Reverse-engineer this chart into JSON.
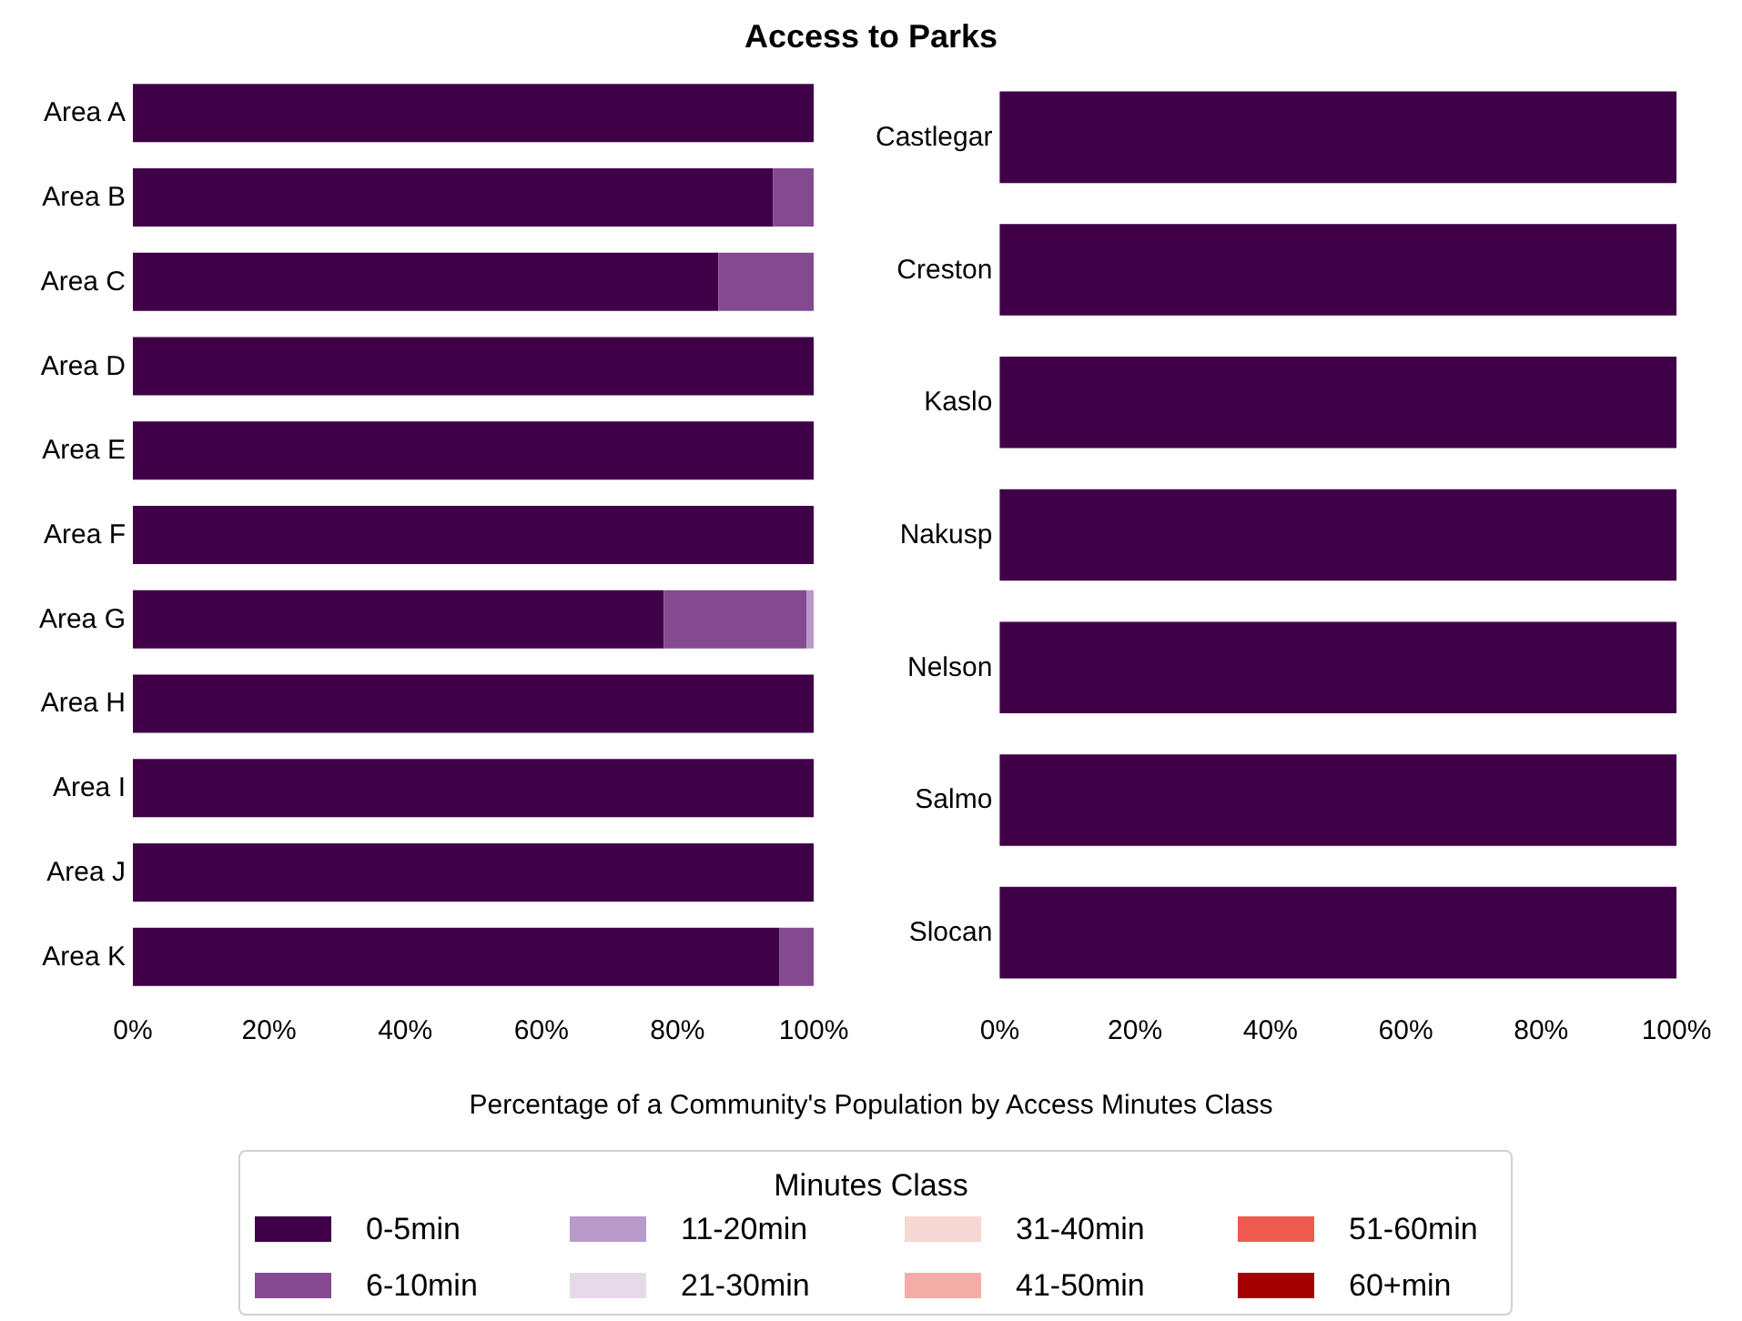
{
  "chart_data": [
    {
      "type": "bar",
      "orientation": "horizontal",
      "stacked": true,
      "title": "Access to Parks",
      "xlabel": "Percentage of a Community's Population by Access Minutes Class",
      "legend_title": "Minutes Class",
      "legend": "bottom",
      "grid": false,
      "categories": [
        "Area A",
        "Area B",
        "Area C",
        "Area D",
        "Area E",
        "Area F",
        "Area G",
        "Area H",
        "Area I",
        "Area J",
        "Area K"
      ],
      "xlim": [
        0,
        100
      ],
      "xticks": [
        {
          "value": 0,
          "label": "0%"
        },
        {
          "value": 20,
          "label": "20%"
        },
        {
          "value": 40,
          "label": "40%"
        },
        {
          "value": 60,
          "label": "60%"
        },
        {
          "value": 80,
          "label": "80%"
        },
        {
          "value": 100,
          "label": "100%"
        }
      ],
      "series": [
        {
          "name": "0-5min",
          "color": "#3f0047",
          "values": [
            100,
            94,
            86,
            100,
            100,
            100,
            78,
            100,
            100,
            100,
            95
          ]
        },
        {
          "name": "6-10min",
          "color": "#834a8f",
          "values": [
            0,
            6,
            14,
            0,
            0,
            0,
            21,
            0,
            0,
            0,
            5
          ]
        },
        {
          "name": "11-20min",
          "color": "#b89acb",
          "values": [
            0,
            0,
            0,
            0,
            0,
            0,
            1,
            0,
            0,
            0,
            0
          ]
        },
        {
          "name": "21-30min",
          "color": "#e8d9ea",
          "values": [
            0,
            0,
            0,
            0,
            0,
            0,
            0,
            0,
            0,
            0,
            0
          ]
        },
        {
          "name": "31-40min",
          "color": "#f7d7d3",
          "values": [
            0,
            0,
            0,
            0,
            0,
            0,
            0,
            0,
            0,
            0,
            0
          ]
        },
        {
          "name": "41-50min",
          "color": "#f4aca6",
          "values": [
            0,
            0,
            0,
            0,
            0,
            0,
            0,
            0,
            0,
            0,
            0
          ]
        },
        {
          "name": "51-60min",
          "color": "#ef5a4e",
          "values": [
            0,
            0,
            0,
            0,
            0,
            0,
            0,
            0,
            0,
            0,
            0
          ]
        },
        {
          "name": "60+min",
          "color": "#a50000",
          "values": [
            0,
            0,
            0,
            0,
            0,
            0,
            0,
            0,
            0,
            0,
            0
          ]
        }
      ]
    },
    {
      "type": "bar",
      "orientation": "horizontal",
      "stacked": true,
      "grid": false,
      "categories": [
        "Castlegar",
        "Creston",
        "Kaslo",
        "Nakusp",
        "Nelson",
        "Salmo",
        "Slocan"
      ],
      "xlim": [
        0,
        100
      ],
      "xticks": [
        {
          "value": 0,
          "label": "0%"
        },
        {
          "value": 20,
          "label": "20%"
        },
        {
          "value": 40,
          "label": "40%"
        },
        {
          "value": 60,
          "label": "60%"
        },
        {
          "value": 80,
          "label": "80%"
        },
        {
          "value": 100,
          "label": "100%"
        }
      ],
      "series": [
        {
          "color": "#3f0047",
          "values": [
            100,
            100,
            100,
            100,
            100,
            100,
            100
          ]
        },
        {
          "color": "#834a8f",
          "values": [
            0,
            0,
            0,
            0,
            0,
            0,
            0
          ]
        },
        {
          "color": "#b89acb",
          "values": [
            0,
            0,
            0,
            0,
            0,
            0,
            0
          ]
        },
        {
          "color": "#e8d9ea",
          "values": [
            0,
            0,
            0,
            0,
            0,
            0,
            0
          ]
        },
        {
          "color": "#f7d7d3",
          "values": [
            0,
            0,
            0,
            0,
            0,
            0,
            0
          ]
        },
        {
          "color": "#f4aca6",
          "values": [
            0,
            0,
            0,
            0,
            0,
            0,
            0
          ]
        },
        {
          "color": "#ef5a4e",
          "values": [
            0,
            0,
            0,
            0,
            0,
            0,
            0
          ]
        },
        {
          "color": "#a50000",
          "values": [
            0,
            0,
            0,
            0,
            0,
            0,
            0
          ]
        }
      ]
    }
  ]
}
